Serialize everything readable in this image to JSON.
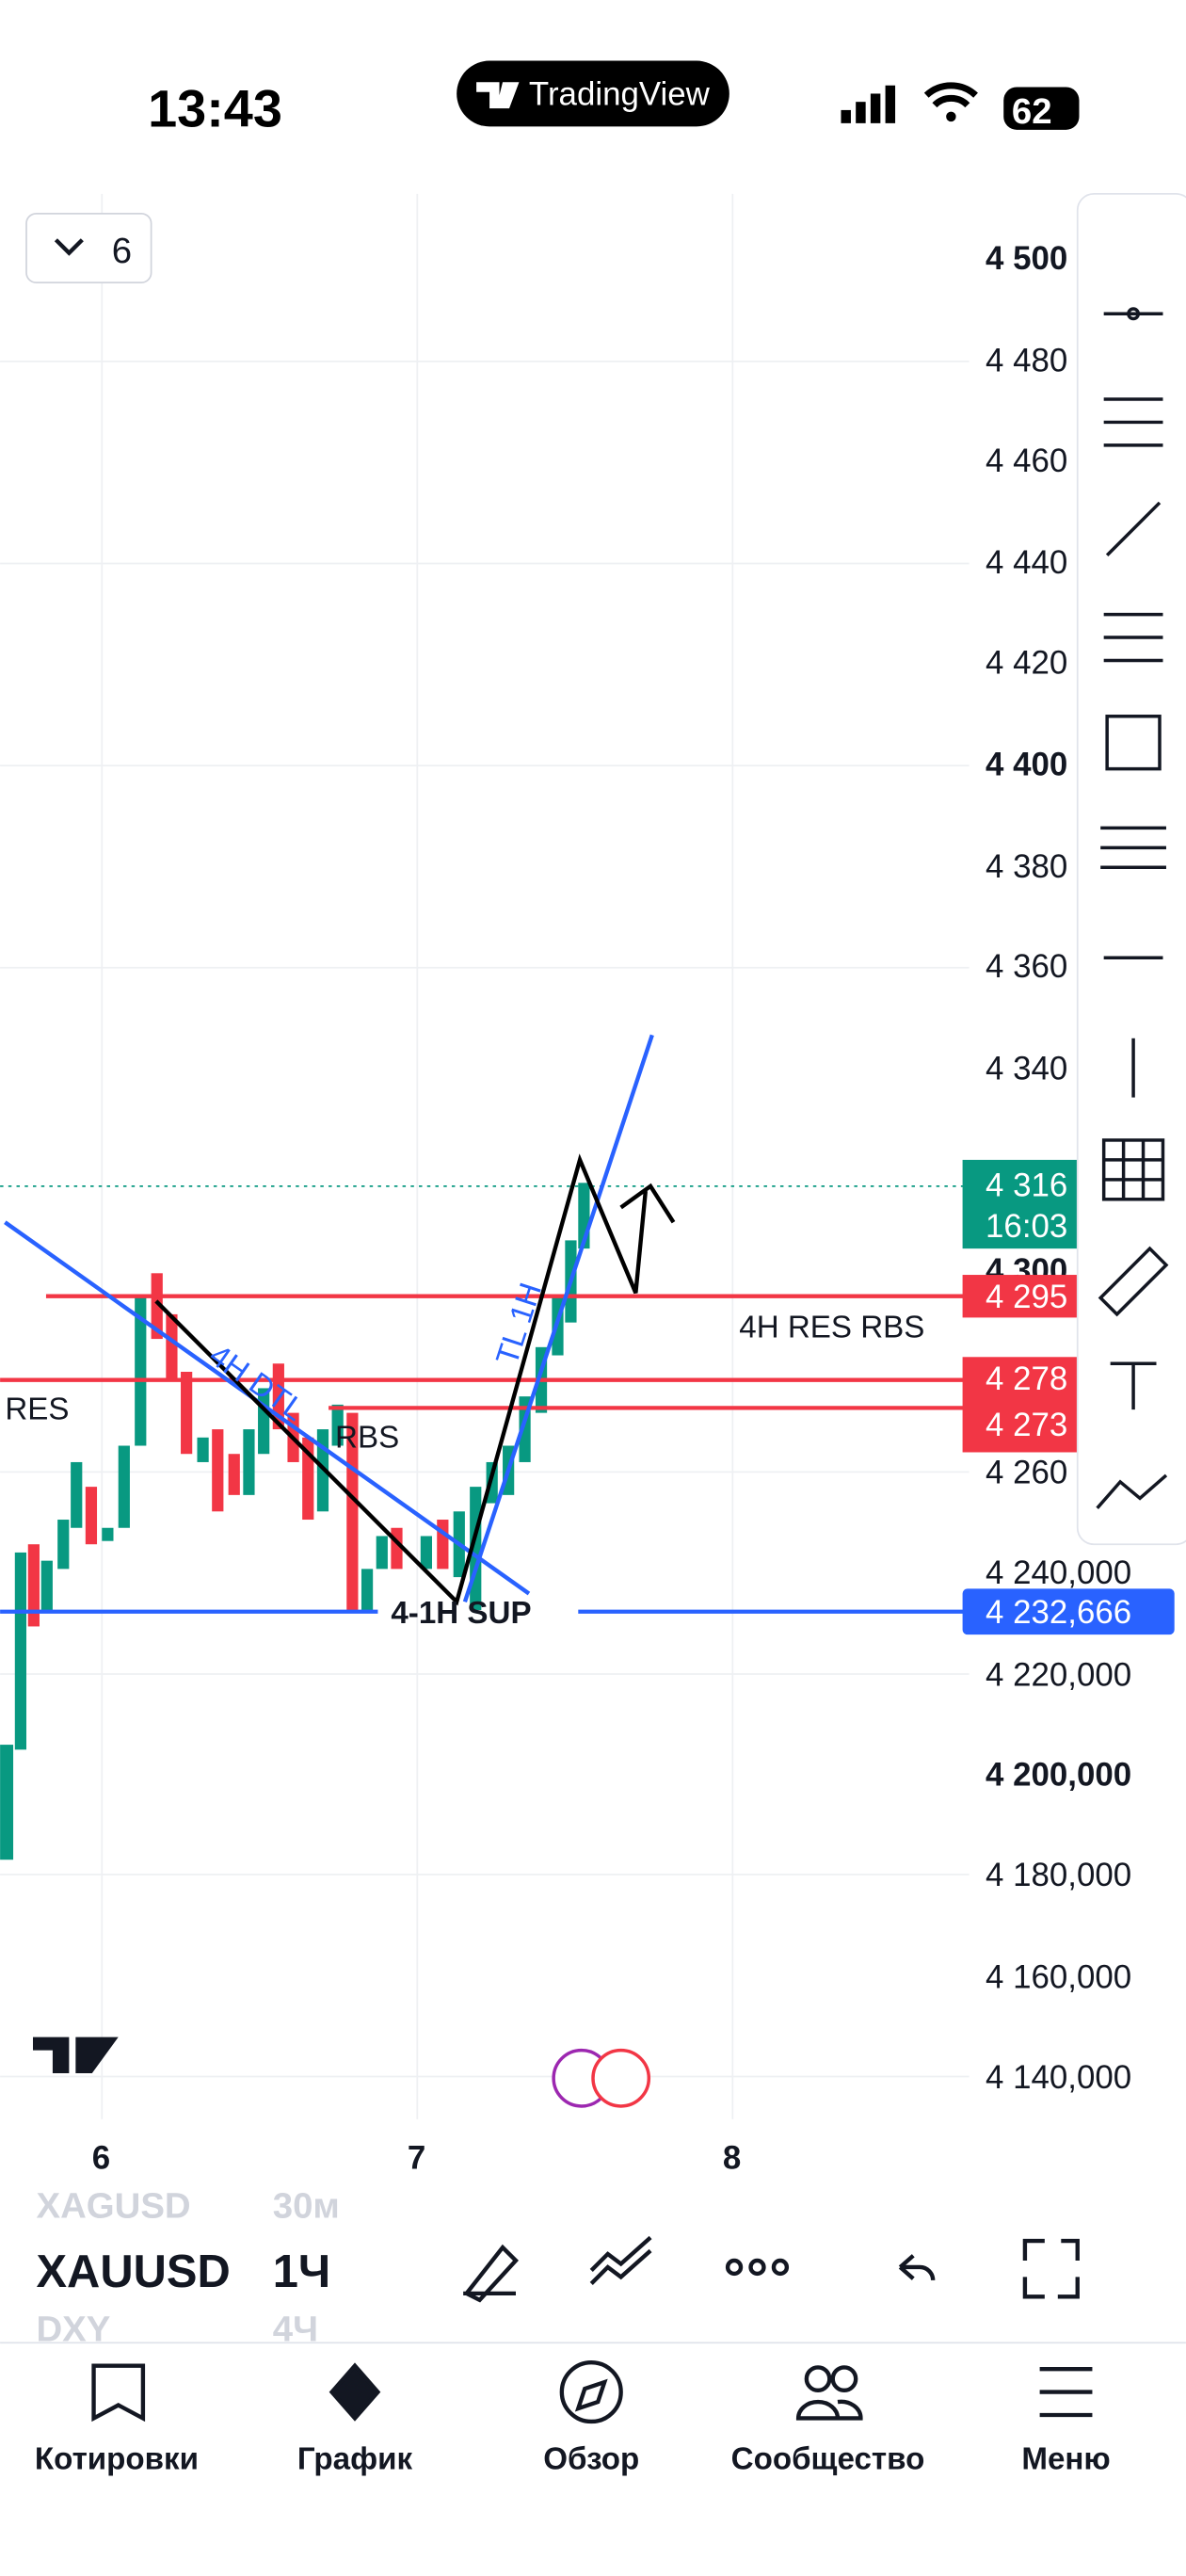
{
  "status": {
    "time": "13:43",
    "app": "TradingView",
    "battery": "62"
  },
  "chart": {
    "interval_button": "6",
    "price_labels": [
      "4 500",
      "4 480",
      "4 460",
      "4 440",
      "4 420",
      "4 400",
      "4 380",
      "4 360",
      "4 340",
      "4 300",
      "4 260",
      "4 240,000",
      "4 220,000",
      "4 200,000",
      "4 180,000",
      "4 160,000",
      "4 140,000"
    ],
    "price_tags": [
      "4 316",
      "16:03",
      "4 295",
      "4 278",
      "4 273",
      "4 232,666"
    ],
    "annotations": [
      "RES",
      "4H DTL",
      "RBS",
      "4-1H SUP",
      "TL 1H",
      "4H RES RBS"
    ],
    "x_labels": [
      "6",
      "7",
      "8"
    ]
  },
  "symbols": {
    "prev": "XAGUSD",
    "prev_interval": "30м",
    "current": "XAUUSD",
    "interval": "1Ч",
    "next": "DXY",
    "next_interval": "4Ч"
  },
  "nav": [
    "Котировки",
    "График",
    "Обзор",
    "Сообщество",
    "Меню"
  ]
}
